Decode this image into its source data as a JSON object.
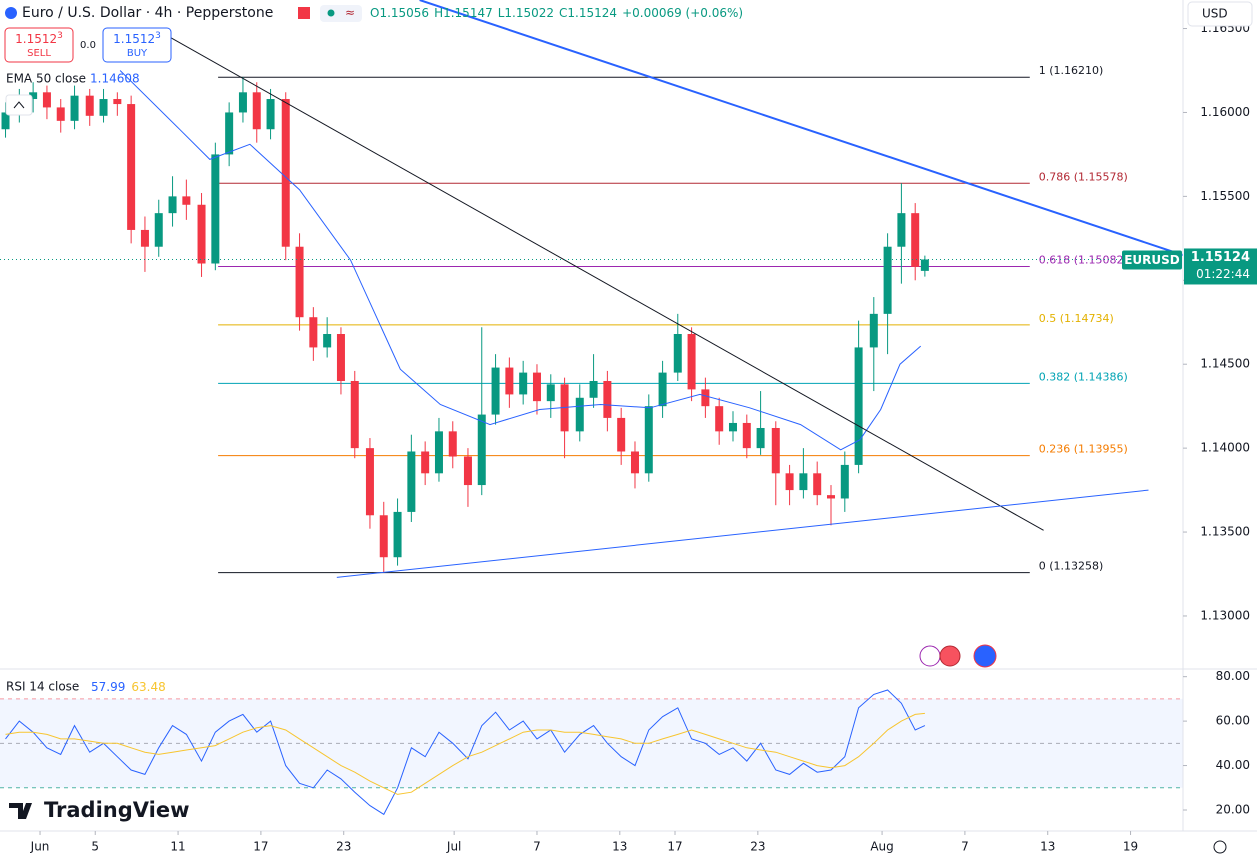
{
  "chart_data": [
    {
      "type": "candlestick",
      "title": "Euro / U.S. Dollar · 4h · Pepperstone",
      "legend_values": [
        "O1.15056",
        "H1.15147",
        "L1.15022",
        "C1.15124",
        "+0.00069 (+0.06%)"
      ],
      "trade": {
        "sell": {
          "price": "1.1512",
          "pip": "3",
          "label": "SELL"
        },
        "spread": "0.0",
        "buy": {
          "price": "1.1512",
          "pip": "3",
          "label": "BUY"
        }
      },
      "currency": "USD",
      "brand": "TradingView",
      "up_color": "#089981",
      "down_color": "#f23645",
      "xlim": [
        -2.9,
        82.8
      ],
      "xticks": [
        {
          "value": 0,
          "label": "Jun"
        },
        {
          "value": 4,
          "label": "5"
        },
        {
          "value": 10,
          "label": "11"
        },
        {
          "value": 16,
          "label": "17"
        },
        {
          "value": 22,
          "label": "23"
        },
        {
          "value": 30,
          "label": "Jul"
        },
        {
          "value": 36,
          "label": "7"
        },
        {
          "value": 42,
          "label": "13"
        },
        {
          "value": 46,
          "label": "17"
        },
        {
          "value": 52,
          "label": "23"
        },
        {
          "value": 61,
          "label": "Aug"
        },
        {
          "value": 67,
          "label": "7"
        },
        {
          "value": 73,
          "label": "13"
        },
        {
          "value": 79,
          "label": "19"
        }
      ],
      "ylim": [
        1.1269,
        1.1667
      ],
      "yticks": [
        {
          "value": 1.13,
          "label": "1.13000"
        },
        {
          "value": 1.135,
          "label": "1.13500"
        },
        {
          "value": 1.14,
          "label": "1.14000"
        },
        {
          "value": 1.145,
          "label": "1.14500"
        },
        {
          "value": 1.15,
          "label": "1.15000"
        },
        {
          "value": 1.155,
          "label": "1.15500"
        },
        {
          "value": 1.16,
          "label": "1.16000"
        },
        {
          "value": 1.165,
          "label": "1.16500"
        }
      ],
      "x": [
        -2.5,
        -1.5,
        -0.5,
        0.5,
        1.5,
        2.5,
        3.6,
        4.6,
        5.6,
        6.6,
        7.6,
        8.6,
        9.6,
        10.6,
        11.7,
        12.7,
        13.7,
        14.7,
        15.7,
        16.7,
        17.8,
        18.8,
        19.8,
        20.8,
        21.8,
        22.8,
        23.9,
        24.9,
        25.9,
        26.9,
        27.9,
        28.9,
        29.9,
        31.0,
        32.0,
        33.0,
        34.0,
        35.0,
        36.0,
        37.0,
        38.0,
        39.1,
        40.1,
        41.1,
        42.1,
        43.1,
        44.1,
        45.1,
        46.2,
        47.2,
        48.2,
        49.2,
        50.2,
        51.2,
        52.2,
        53.3,
        54.3,
        55.3,
        56.3,
        57.3,
        58.3,
        59.3,
        60.4,
        61.4,
        62.4,
        63.4,
        64.1
      ],
      "ohlc": [
        [
          1.159,
          1.1606,
          1.1585,
          1.16
        ],
        [
          1.16,
          1.1614,
          1.1594,
          1.1608
        ],
        [
          1.1608,
          1.1618,
          1.16,
          1.1612
        ],
        [
          1.1612,
          1.1616,
          1.1596,
          1.1603
        ],
        [
          1.1603,
          1.1608,
          1.1588,
          1.1595
        ],
        [
          1.1595,
          1.1616,
          1.159,
          1.161
        ],
        [
          1.161,
          1.1614,
          1.1592,
          1.1598
        ],
        [
          1.1598,
          1.1614,
          1.1594,
          1.1608
        ],
        [
          1.1608,
          1.1612,
          1.1598,
          1.1605
        ],
        [
          1.1605,
          1.161,
          1.1522,
          1.153
        ],
        [
          1.153,
          1.1538,
          1.1505,
          1.152
        ],
        [
          1.152,
          1.1548,
          1.1514,
          1.154
        ],
        [
          1.154,
          1.1562,
          1.1532,
          1.155
        ],
        [
          1.155,
          1.156,
          1.1536,
          1.1545
        ],
        [
          1.1545,
          1.1552,
          1.1502,
          1.151
        ],
        [
          1.151,
          1.1582,
          1.1506,
          1.1575
        ],
        [
          1.1575,
          1.1606,
          1.1568,
          1.16
        ],
        [
          1.16,
          1.1621,
          1.1594,
          1.1612
        ],
        [
          1.1612,
          1.1618,
          1.1582,
          1.159
        ],
        [
          1.159,
          1.1614,
          1.1584,
          1.1608
        ],
        [
          1.1608,
          1.1612,
          1.1512,
          1.152
        ],
        [
          1.152,
          1.1528,
          1.147,
          1.1478
        ],
        [
          1.1478,
          1.1484,
          1.1452,
          1.146
        ],
        [
          1.146,
          1.1478,
          1.1454,
          1.1468
        ],
        [
          1.1468,
          1.1472,
          1.1432,
          1.144
        ],
        [
          1.144,
          1.1446,
          1.1394,
          1.14
        ],
        [
          1.14,
          1.1406,
          1.1352,
          1.136
        ],
        [
          1.136,
          1.1368,
          1.13258,
          1.1335
        ],
        [
          1.1335,
          1.137,
          1.133,
          1.1362
        ],
        [
          1.1362,
          1.1408,
          1.1356,
          1.1398
        ],
        [
          1.1398,
          1.1404,
          1.1378,
          1.1385
        ],
        [
          1.1385,
          1.1418,
          1.138,
          1.141
        ],
        [
          1.141,
          1.1416,
          1.1388,
          1.1395
        ],
        [
          1.1395,
          1.14,
          1.1365,
          1.1378
        ],
        [
          1.1378,
          1.1472,
          1.1372,
          1.142
        ],
        [
          1.142,
          1.1456,
          1.1414,
          1.1448
        ],
        [
          1.1448,
          1.1454,
          1.1424,
          1.1432
        ],
        [
          1.1432,
          1.1452,
          1.1426,
          1.1445
        ],
        [
          1.1445,
          1.145,
          1.142,
          1.1428
        ],
        [
          1.1428,
          1.1444,
          1.1418,
          1.1438
        ],
        [
          1.1438,
          1.1442,
          1.1394,
          1.141
        ],
        [
          1.141,
          1.1438,
          1.1404,
          1.143
        ],
        [
          1.143,
          1.1456,
          1.1424,
          1.144
        ],
        [
          1.144,
          1.1446,
          1.141,
          1.1418
        ],
        [
          1.1418,
          1.1424,
          1.139,
          1.1398
        ],
        [
          1.1398,
          1.1404,
          1.1376,
          1.1385
        ],
        [
          1.1385,
          1.1432,
          1.138,
          1.1425
        ],
        [
          1.1425,
          1.1452,
          1.1418,
          1.1445
        ],
        [
          1.1445,
          1.148,
          1.144,
          1.1468
        ],
        [
          1.1468,
          1.1472,
          1.1428,
          1.1435
        ],
        [
          1.1435,
          1.1442,
          1.1418,
          1.1425
        ],
        [
          1.1425,
          1.143,
          1.1402,
          1.141
        ],
        [
          1.141,
          1.1422,
          1.1404,
          1.1415
        ],
        [
          1.1415,
          1.142,
          1.1394,
          1.14
        ],
        [
          1.14,
          1.1434,
          1.1396,
          1.1412
        ],
        [
          1.1412,
          1.1416,
          1.1366,
          1.1385
        ],
        [
          1.1385,
          1.139,
          1.1366,
          1.1375
        ],
        [
          1.1375,
          1.14,
          1.137,
          1.1385
        ],
        [
          1.1385,
          1.1392,
          1.1366,
          1.1372
        ],
        [
          1.1372,
          1.1378,
          1.1354,
          1.137
        ],
        [
          1.137,
          1.1398,
          1.1362,
          1.139
        ],
        [
          1.139,
          1.1476,
          1.1385,
          1.146
        ],
        [
          1.146,
          1.149,
          1.1434,
          1.148
        ],
        [
          1.148,
          1.1528,
          1.1456,
          1.152
        ],
        [
          1.152,
          1.15578,
          1.1498,
          1.154
        ],
        [
          1.154,
          1.1546,
          1.15,
          1.1508
        ],
        [
          1.15056,
          1.15147,
          1.15022,
          1.15124
        ]
      ],
      "overlays": [
        {
          "name": "EMA 50 close",
          "color": "#2962ff",
          "x": [
            5.8,
            10.1,
            12.3,
            15.2,
            18.8,
            22.5,
            26.1,
            29.0,
            32.6,
            36.2,
            40.6,
            44.2,
            47.8,
            51.4,
            55.1,
            58.0,
            59.4,
            60.9,
            62.3,
            63.8
          ],
          "values": [
            1.1625,
            1.159,
            1.1572,
            1.1581,
            1.1554,
            1.1512,
            1.1447,
            1.1426,
            1.1414,
            1.1423,
            1.1426,
            1.1424,
            1.1432,
            1.1424,
            1.1414,
            1.1399,
            1.1405,
            1.1423,
            1.145,
            1.14608
          ]
        }
      ],
      "fib_x": [
        12.9,
        71.7
      ],
      "fib_levels": [
        {
          "value": 1.1621,
          "label": "1 (1.16210)",
          "color": "#131722"
        },
        {
          "value": 1.15578,
          "label": "0.786 (1.15578)",
          "color": "#b22833"
        },
        {
          "value": 1.15082,
          "label": "0.618 (1.15082)",
          "color": "#9c27b0"
        },
        {
          "value": 1.14734,
          "label": "0.5 (1.14734)",
          "color": "#e3b100"
        },
        {
          "value": 1.14386,
          "label": "0.382 (1.14386)",
          "color": "#00a3b4"
        },
        {
          "value": 1.13955,
          "label": "0.236 (1.13955)",
          "color": "#f57c00"
        },
        {
          "value": 1.13258,
          "label": "0 (1.13258)",
          "color": "#131722"
        }
      ],
      "trendlines": [
        {
          "x": [
            8.3,
            72.7
          ],
          "y": [
            1.165,
            1.1351
          ],
          "color": "#131722",
          "width": 1
        },
        {
          "x": [
            27.5,
            82.8
          ],
          "y": [
            1.1667,
            1.1515
          ],
          "color": "#2962ff",
          "width": 2
        },
        {
          "x": [
            21.5,
            80.3
          ],
          "y": [
            1.1323,
            1.1375
          ],
          "color": "#2962ff",
          "width": 1
        }
      ],
      "last_price": {
        "symbol": "EURUSD",
        "countdown": "01:22:44",
        "color": "#089981"
      }
    },
    {
      "type": "line",
      "title": "RSI 14 close",
      "xlim": [
        -2.9,
        82.8
      ],
      "ylim": [
        11,
        83
      ],
      "yticks": [
        {
          "value": 20,
          "label": "20.00"
        },
        {
          "value": 40,
          "label": "40.00"
        },
        {
          "value": 60,
          "label": "60.00"
        },
        {
          "value": 80,
          "label": "80.00"
        }
      ],
      "bands": {
        "upper": 70,
        "middle": 50,
        "lower": 30
      },
      "x": [
        -2.5,
        -1.5,
        -0.5,
        0.5,
        1.5,
        2.5,
        3.6,
        4.6,
        5.6,
        6.6,
        7.6,
        8.6,
        9.6,
        10.6,
        11.7,
        12.7,
        13.7,
        14.7,
        15.7,
        16.7,
        17.8,
        18.8,
        19.8,
        20.8,
        21.8,
        22.8,
        23.9,
        24.9,
        25.9,
        26.9,
        27.9,
        28.9,
        29.9,
        31.0,
        32.0,
        33.0,
        34.0,
        35.0,
        36.0,
        37.0,
        38.0,
        39.1,
        40.1,
        41.1,
        42.1,
        43.1,
        44.1,
        45.1,
        46.2,
        47.2,
        48.2,
        49.2,
        50.2,
        51.2,
        52.2,
        53.3,
        54.3,
        55.3,
        56.3,
        57.3,
        58.3,
        59.3,
        60.4,
        61.4,
        62.4,
        63.4,
        64.1
      ],
      "series": [
        {
          "color": "#2962ff",
          "values": [
            52,
            60,
            55,
            48,
            45,
            58,
            46,
            50,
            44,
            38,
            36,
            48,
            58,
            54,
            42,
            55,
            60,
            63,
            55,
            60,
            40,
            32,
            30,
            38,
            34,
            28,
            22,
            18,
            30,
            48,
            44,
            55,
            50,
            43,
            58,
            64,
            56,
            60,
            52,
            56,
            46,
            54,
            58,
            50,
            44,
            40,
            56,
            62,
            66,
            52,
            50,
            45,
            48,
            42,
            50,
            38,
            36,
            41,
            37,
            38,
            44,
            66,
            72,
            74,
            68,
            56,
            57.99
          ]
        },
        {
          "color": "#f7c530",
          "values": [
            54,
            55,
            55,
            54,
            52,
            52,
            51,
            50,
            50,
            48,
            46,
            45,
            46,
            47,
            48,
            49,
            52,
            55,
            57,
            58,
            56,
            52,
            48,
            44,
            40,
            37,
            33,
            30,
            27,
            28,
            32,
            36,
            40,
            44,
            46,
            49,
            52,
            55,
            56,
            56,
            55,
            55,
            54,
            53,
            52,
            50,
            50,
            52,
            54,
            56,
            54,
            52,
            50,
            48,
            47,
            46,
            44,
            42,
            40,
            39,
            40,
            44,
            50,
            56,
            60,
            63,
            63.48
          ]
        }
      ]
    }
  ]
}
